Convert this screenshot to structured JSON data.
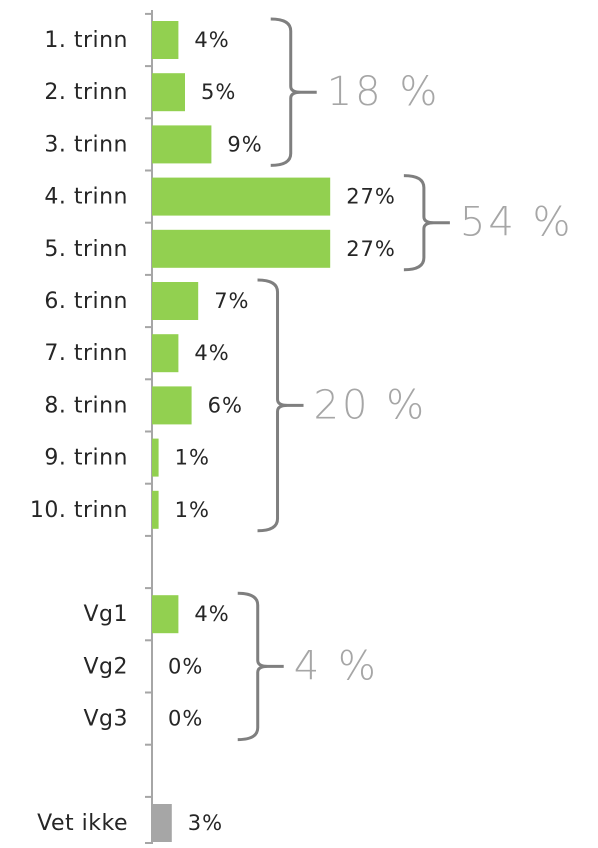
{
  "chart_data": {
    "type": "hbar",
    "categories": [
      "1. trinn",
      "2. trinn",
      "3. trinn",
      "4. trinn",
      "5. trinn",
      "6. trinn",
      "7. trinn",
      "8. trinn",
      "9. trinn",
      "10. trinn",
      null,
      "Vg1",
      "Vg2",
      "Vg3",
      null,
      "Vet ikke"
    ],
    "values": [
      4,
      5,
      9,
      27,
      27,
      7,
      4,
      6,
      1,
      1,
      null,
      4,
      0,
      0,
      null,
      3
    ],
    "value_labels": [
      "4%",
      "5%",
      "9%",
      "27%",
      "27%",
      "7%",
      "4%",
      "6%",
      "1%",
      "1%",
      null,
      "4%",
      "0%",
      "0%",
      null,
      "3%"
    ],
    "colors": [
      "#92d050",
      "#92d050",
      "#92d050",
      "#92d050",
      "#92d050",
      "#92d050",
      "#92d050",
      "#92d050",
      "#92d050",
      "#92d050",
      null,
      "#92d050",
      "#92d050",
      "#92d050",
      null,
      "#a6a6a6"
    ],
    "xlim": [
      0,
      60
    ],
    "groups": [
      {
        "label": "18 %",
        "from": 0,
        "to": 2
      },
      {
        "label": "54 %",
        "from": 3,
        "to": 4
      },
      {
        "label": "20 %",
        "from": 5,
        "to": 9
      },
      {
        "label": "4 %",
        "from": 11,
        "to": 13
      }
    ]
  }
}
